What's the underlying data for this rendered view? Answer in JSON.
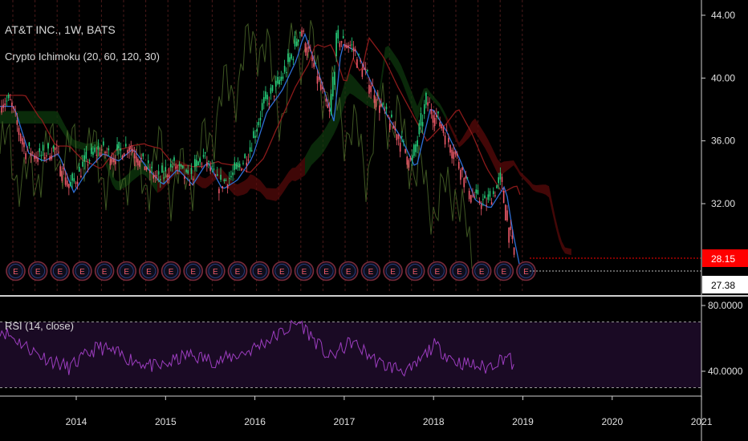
{
  "symbol_title": "AT&T INC., 1W, BATS",
  "indicator_label": "Crypto Ichimoku (20, 60, 120, 30)",
  "rsi_label": "RSI (14, close)",
  "earnings_marker_label": "E",
  "colors": {
    "background": "#000000",
    "up_candle": "#26d07c",
    "down_candle": "#f05a6a",
    "cloud_red": "#5a0a0a",
    "cloud_green": "#0e3a0e",
    "tenkan": "#2d6fd6",
    "kijun": "#8b1a1a",
    "lagging": "#4d6b2a",
    "rsi_line": "#9c3dbf",
    "rsi_band": "#1a0a24",
    "price_tag_current": "#ff0000",
    "price_tag_prev": "#ffffff"
  },
  "chart_data": [
    {
      "type": "line",
      "name": "price",
      "x_ticks": [
        "2014",
        "2015",
        "2016",
        "2017",
        "2018",
        "2019",
        "2020",
        "2021"
      ],
      "y_ticks": [
        "44.00",
        "40.00",
        "36.00",
        "32.00"
      ],
      "ylim": [
        27,
        44
      ],
      "x_range": [
        "2013-04",
        "2021-01"
      ],
      "last_price": "28.15",
      "prev_price": "27.38",
      "close_series": {
        "x": [
          "2013-04",
          "2013-06",
          "2013-08",
          "2013-10",
          "2013-12",
          "2014-02",
          "2014-04",
          "2014-06",
          "2014-08",
          "2014-10",
          "2014-12",
          "2015-02",
          "2015-04",
          "2015-06",
          "2015-08",
          "2015-10",
          "2015-12",
          "2016-02",
          "2016-04",
          "2016-06",
          "2016-07",
          "2016-09",
          "2016-11",
          "2016-12",
          "2017-02",
          "2017-04",
          "2017-06",
          "2017-08",
          "2017-10",
          "2017-12",
          "2018-02",
          "2018-04",
          "2018-06",
          "2018-08",
          "2018-10",
          "2018-11",
          "2018-12"
        ],
        "y": [
          38.5,
          35.5,
          35.0,
          35.5,
          33.0,
          34.5,
          35.5,
          35.0,
          35.8,
          34.5,
          33.5,
          34.5,
          33.5,
          35.0,
          33.2,
          33.8,
          35.2,
          38.2,
          39.5,
          41.5,
          43.2,
          40.5,
          37.5,
          42.5,
          42.0,
          40.0,
          38.0,
          36.5,
          34.5,
          38.5,
          37.0,
          35.0,
          32.5,
          32.0,
          33.5,
          30.5,
          28.15
        ]
      }
    },
    {
      "type": "line",
      "name": "RSI",
      "y_ticks": [
        "80.0000",
        "40.0000"
      ],
      "ylim": [
        30,
        80
      ],
      "band": [
        30,
        70
      ],
      "x": [
        "2013-04",
        "2013-08",
        "2013-12",
        "2014-04",
        "2014-08",
        "2014-12",
        "2015-04",
        "2015-08",
        "2015-12",
        "2016-04",
        "2016-07",
        "2016-11",
        "2017-02",
        "2017-06",
        "2017-10",
        "2018-01",
        "2018-04",
        "2018-08",
        "2018-11",
        "2018-12"
      ],
      "y": [
        62,
        50,
        42,
        55,
        48,
        42,
        50,
        46,
        52,
        62,
        70,
        48,
        58,
        44,
        40,
        56,
        46,
        42,
        50,
        40
      ]
    }
  ]
}
